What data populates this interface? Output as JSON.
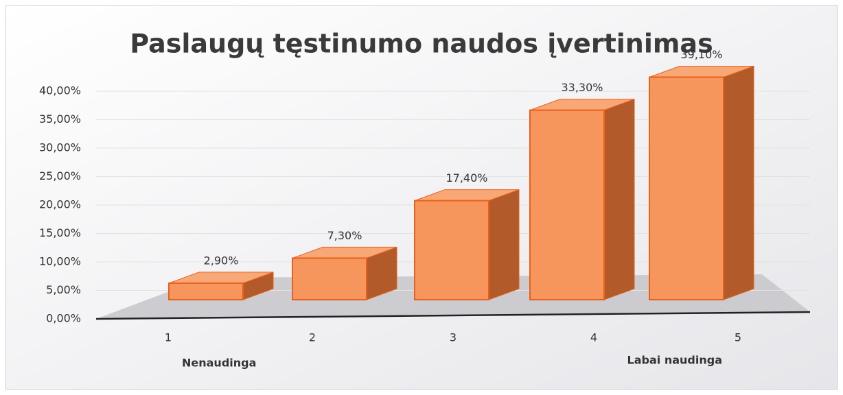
{
  "chart_data": {
    "type": "bar3d",
    "title": "Paslaugų tęstinumo naudos įvertinimas",
    "categories": [
      "1",
      "2",
      "3",
      "4",
      "5"
    ],
    "values": [
      2.9,
      7.3,
      17.4,
      33.3,
      39.1
    ],
    "value_labels": [
      "2,90%",
      "7,30%",
      "17,40%",
      "33,30%",
      "39,10%"
    ],
    "color": "#f7965c",
    "ylim": [
      0,
      40
    ],
    "yticks": [
      {
        "value": 0,
        "label": "0,00%"
      },
      {
        "value": 5,
        "label": "5,00%"
      },
      {
        "value": 10,
        "label": "10,00%"
      },
      {
        "value": 15,
        "label": "15,00%"
      },
      {
        "value": 20,
        "label": "20,00%"
      },
      {
        "value": 25,
        "label": "25,00%"
      },
      {
        "value": 30,
        "label": "30,00%"
      },
      {
        "value": 35,
        "label": "35,00%"
      },
      {
        "value": 40,
        "label": "40,00%"
      }
    ],
    "grid": true,
    "annotations": [
      "Nenaudinga",
      "Labai naudinga"
    ]
  }
}
